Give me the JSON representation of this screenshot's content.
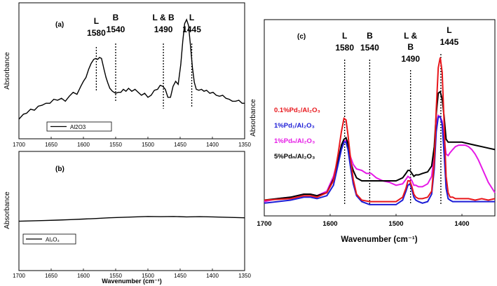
{
  "chart_data": [
    {
      "id": "a",
      "type": "line",
      "panel_label": "(a)",
      "ylabel": "Absorbance",
      "xlabel": "",
      "xlim": [
        1700,
        1350
      ],
      "x_ticks": [
        1700,
        1650,
        1600,
        1550,
        1500,
        1450,
        1400,
        1350
      ],
      "ylim": [
        0,
        1
      ],
      "series": [
        {
          "name": "Al2O3",
          "color": "#000000",
          "x": [
            1700,
            1693,
            1688,
            1682,
            1676,
            1670,
            1664,
            1658,
            1652,
            1646,
            1640,
            1634,
            1628,
            1622,
            1616,
            1610,
            1604,
            1600,
            1596,
            1592,
            1588,
            1584,
            1581,
            1578,
            1575,
            1572,
            1568,
            1565,
            1562,
            1559,
            1555,
            1550,
            1546,
            1542,
            1538,
            1534,
            1530,
            1525,
            1520,
            1515,
            1510,
            1505,
            1500,
            1495,
            1490,
            1485,
            1481,
            1477,
            1473,
            1469,
            1465,
            1461,
            1457,
            1453,
            1449,
            1446,
            1443,
            1440,
            1437,
            1434,
            1431,
            1428,
            1425,
            1421,
            1417,
            1413,
            1409,
            1404,
            1399,
            1394,
            1389,
            1384,
            1379,
            1374,
            1369,
            1364,
            1359,
            1354,
            1350
          ],
          "y": [
            0.0,
            0.05,
            0.06,
            0.1,
            0.09,
            0.13,
            0.14,
            0.16,
            0.16,
            0.2,
            0.19,
            0.21,
            0.18,
            0.23,
            0.27,
            0.25,
            0.33,
            0.38,
            0.42,
            0.5,
            0.56,
            0.6,
            0.61,
            0.6,
            0.62,
            0.61,
            0.5,
            0.42,
            0.36,
            0.31,
            0.28,
            0.26,
            0.27,
            0.27,
            0.3,
            0.28,
            0.31,
            0.28,
            0.3,
            0.27,
            0.24,
            0.26,
            0.22,
            0.24,
            0.29,
            0.3,
            0.34,
            0.33,
            0.3,
            0.22,
            0.22,
            0.33,
            0.38,
            0.35,
            0.55,
            0.78,
            0.96,
            1.0,
            0.94,
            0.74,
            0.52,
            0.37,
            0.3,
            0.29,
            0.3,
            0.28,
            0.29,
            0.26,
            0.27,
            0.24,
            0.23,
            0.24,
            0.21,
            0.2,
            0.18,
            0.18,
            0.19,
            0.16,
            0.16
          ]
        }
      ],
      "legend": {
        "text": "Al2O3",
        "position": "bottom-right"
      },
      "annotations": [
        {
          "x": 1580,
          "label": "L",
          "value": "1580"
        },
        {
          "x": 1550,
          "label": "B",
          "value": "1540"
        },
        {
          "x": 1476,
          "label": "L & B",
          "value": "1490"
        },
        {
          "x": 1432,
          "label": "L",
          "value": "1445"
        }
      ]
    },
    {
      "id": "b",
      "type": "line",
      "panel_label": "(b)",
      "ylabel": "Absorbance",
      "xlabel": "Wavenumber (cm⁻¹)",
      "xlim": [
        1700,
        1350
      ],
      "x_ticks": [
        1700,
        1650,
        1600,
        1550,
        1500,
        1450,
        1400,
        1350
      ],
      "ylim": [
        0,
        1
      ],
      "series": [
        {
          "name": "Al₂O₃",
          "color": "#000000",
          "x": [
            1700,
            1680,
            1660,
            1640,
            1620,
            1600,
            1580,
            1560,
            1540,
            1520,
            1500,
            1480,
            1460,
            1440,
            1420,
            1400,
            1380,
            1360,
            1350
          ],
          "y": [
            0.4,
            0.42,
            0.44,
            0.46,
            0.49,
            0.52,
            0.55,
            0.59,
            0.61,
            0.64,
            0.66,
            0.65,
            0.66,
            0.64,
            0.65,
            0.64,
            0.62,
            0.6,
            0.59
          ]
        }
      ],
      "legend": {
        "text": "Al₂O₃",
        "position": "bottom-left"
      }
    },
    {
      "id": "c",
      "type": "line",
      "panel_label": "(c)",
      "ylabel": "Absorbance",
      "xlabel": "Wavenumber (cm⁻¹)",
      "xlim": [
        1700,
        1350
      ],
      "x_ticks": [
        1700,
        1600,
        1500,
        1400
      ],
      "ylim": [
        0,
        1
      ],
      "legend": {
        "position": "left",
        "entries": [
          {
            "text": "0.1%Pd₁/Al₂O₃",
            "color": "#e8161b"
          },
          {
            "text": "1%Pd₁/Al₂O₃",
            "color": "#1c1cd6"
          },
          {
            "text": "1%Pdₙ/Al₂O₃",
            "color": "#e619e6"
          },
          {
            "text": "5%Pdₙ/Al₂O₃",
            "color": "#000000"
          }
        ]
      },
      "annotations": [
        {
          "x": 1578,
          "label": "L",
          "value": "1580"
        },
        {
          "x": 1540,
          "label": "B",
          "value": "1540"
        },
        {
          "x": 1478,
          "label": "L &",
          "label2": "B",
          "value": "1490"
        },
        {
          "x": 1432,
          "label": "L",
          "value": "1445"
        }
      ],
      "series": [
        {
          "name": "0.1%Pd₁/Al₂O₃",
          "color": "#e8161b",
          "x": [
            1700,
            1660,
            1640,
            1630,
            1620,
            1605,
            1595,
            1588,
            1583,
            1579,
            1576,
            1573,
            1569,
            1565,
            1560,
            1552,
            1540,
            1520,
            1500,
            1490,
            1485,
            1482,
            1479,
            1476,
            1473,
            1470,
            1466,
            1460,
            1452,
            1446,
            1442,
            1439,
            1436,
            1433,
            1430,
            1427,
            1424,
            1421,
            1418,
            1414,
            1410,
            1400,
            1390,
            1380,
            1370,
            1360,
            1350
          ],
          "y": [
            0.04,
            0.05,
            0.07,
            0.07,
            0.06,
            0.09,
            0.17,
            0.35,
            0.5,
            0.59,
            0.58,
            0.48,
            0.32,
            0.18,
            0.08,
            0.04,
            0.03,
            0.03,
            0.03,
            0.06,
            0.12,
            0.17,
            0.17,
            0.13,
            0.08,
            0.06,
            0.05,
            0.05,
            0.06,
            0.1,
            0.3,
            0.65,
            0.93,
            1.0,
            0.9,
            0.55,
            0.2,
            0.09,
            0.06,
            0.06,
            0.05,
            0.05,
            0.05,
            0.04,
            0.05,
            0.04,
            0.05
          ]
        },
        {
          "name": "1%Pd₁/Al₂O₃",
          "color": "#1c1cd6",
          "x": [
            1700,
            1660,
            1640,
            1630,
            1620,
            1605,
            1595,
            1588,
            1583,
            1579,
            1576,
            1573,
            1569,
            1565,
            1560,
            1552,
            1540,
            1520,
            1500,
            1490,
            1485,
            1482,
            1479,
            1476,
            1473,
            1470,
            1466,
            1460,
            1452,
            1446,
            1442,
            1439,
            1436,
            1433,
            1430,
            1427,
            1424,
            1421,
            1418,
            1414,
            1410,
            1400,
            1390,
            1380,
            1370,
            1360,
            1350
          ],
          "y": [
            0.02,
            0.04,
            0.06,
            0.06,
            0.05,
            0.07,
            0.14,
            0.28,
            0.38,
            0.43,
            0.43,
            0.38,
            0.26,
            0.15,
            0.07,
            0.03,
            0.01,
            0.01,
            0.01,
            0.04,
            0.1,
            0.14,
            0.15,
            0.11,
            0.06,
            0.04,
            0.03,
            0.02,
            0.03,
            0.08,
            0.25,
            0.5,
            0.6,
            0.6,
            0.55,
            0.35,
            0.12,
            0.05,
            0.04,
            0.03,
            0.03,
            0.03,
            0.03,
            0.03,
            0.03,
            0.03,
            0.03
          ]
        },
        {
          "name": "1%Pdₙ/Al₂O₃",
          "color": "#e619e6",
          "x": [
            1700,
            1680,
            1660,
            1640,
            1630,
            1620,
            1605,
            1595,
            1588,
            1583,
            1579,
            1576,
            1573,
            1569,
            1565,
            1560,
            1552,
            1545,
            1538,
            1530,
            1520,
            1510,
            1500,
            1490,
            1485,
            1482,
            1479,
            1476,
            1473,
            1470,
            1466,
            1460,
            1452,
            1446,
            1442,
            1439,
            1436,
            1433,
            1430,
            1427,
            1424,
            1421,
            1418,
            1414,
            1410,
            1405,
            1400,
            1395,
            1390,
            1385,
            1380,
            1375,
            1370,
            1360,
            1350
          ],
          "y": [
            0.03,
            0.05,
            0.06,
            0.08,
            0.08,
            0.07,
            0.1,
            0.2,
            0.32,
            0.4,
            0.44,
            0.44,
            0.4,
            0.33,
            0.28,
            0.25,
            0.24,
            0.22,
            0.22,
            0.19,
            0.17,
            0.16,
            0.14,
            0.15,
            0.18,
            0.2,
            0.19,
            0.17,
            0.14,
            0.14,
            0.13,
            0.13,
            0.15,
            0.2,
            0.35,
            0.55,
            0.61,
            0.6,
            0.57,
            0.45,
            0.35,
            0.34,
            0.36,
            0.38,
            0.4,
            0.41,
            0.41,
            0.41,
            0.4,
            0.38,
            0.35,
            0.31,
            0.26,
            0.16,
            0.09
          ]
        },
        {
          "name": "5%Pdₙ/Al₂O₃",
          "color": "#000000",
          "x": [
            1700,
            1660,
            1640,
            1630,
            1620,
            1605,
            1595,
            1588,
            1583,
            1579,
            1576,
            1573,
            1569,
            1565,
            1560,
            1552,
            1540,
            1520,
            1500,
            1490,
            1485,
            1482,
            1479,
            1476,
            1473,
            1470,
            1466,
            1460,
            1452,
            1446,
            1442,
            1439,
            1436,
            1433,
            1430,
            1427,
            1424,
            1421,
            1418,
            1414,
            1410,
            1400,
            1390,
            1380,
            1370,
            1360,
            1350
          ],
          "y": [
            0.04,
            0.06,
            0.08,
            0.08,
            0.07,
            0.09,
            0.18,
            0.3,
            0.41,
            0.45,
            0.46,
            0.42,
            0.3,
            0.24,
            0.19,
            0.17,
            0.17,
            0.17,
            0.17,
            0.19,
            0.22,
            0.24,
            0.24,
            0.22,
            0.2,
            0.21,
            0.21,
            0.22,
            0.23,
            0.27,
            0.4,
            0.62,
            0.76,
            0.77,
            0.72,
            0.6,
            0.45,
            0.43,
            0.43,
            0.43,
            0.43,
            0.43,
            0.42,
            0.41,
            0.4,
            0.39,
            0.38
          ]
        }
      ]
    }
  ]
}
